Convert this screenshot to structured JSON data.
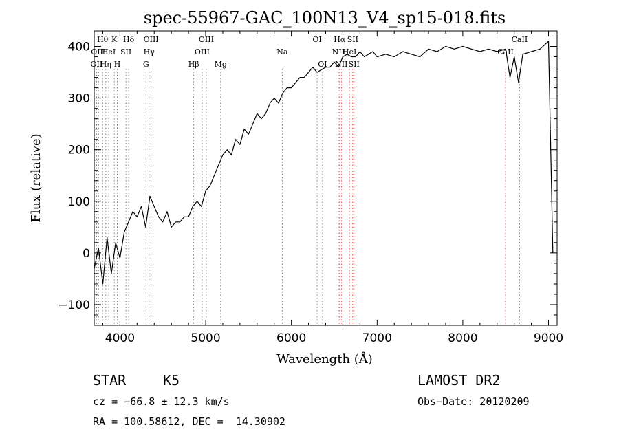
{
  "chart_data": {
    "type": "line",
    "title": "spec-55967-GAC_100N13_V4_sp15-018.fits",
    "xlabel": "Wavelength (Å)",
    "ylabel": "Flux (relative)",
    "xlim": [
      3700,
      9100
    ],
    "ylim": [
      -140,
      430
    ],
    "xticks": [
      4000,
      5000,
      6000,
      7000,
      8000,
      9000
    ],
    "yticks": [
      -100,
      0,
      100,
      200,
      300,
      400
    ],
    "xtick_labels": [
      "4000",
      "5000",
      "6000",
      "7000",
      "8000",
      "9000"
    ],
    "ytick_labels": [
      "−100",
      "0",
      "100",
      "200",
      "300",
      "400"
    ],
    "grid": false,
    "series": [
      {
        "x": [
          3700,
          3750,
          3800,
          3850,
          3900,
          3950,
          4000,
          4050,
          4100,
          4150,
          4200,
          4250,
          4300,
          4350,
          4400,
          4450,
          4500,
          4550,
          4600,
          4650,
          4700,
          4750,
          4800,
          4850,
          4900,
          4950,
          5000,
          5050,
          5100,
          5150,
          5200,
          5250,
          5300,
          5350,
          5400,
          5450,
          5500,
          5550,
          5600,
          5650,
          5700,
          5750,
          5800,
          5850,
          5900,
          5950,
          6000,
          6050,
          6100,
          6150,
          6200,
          6250,
          6300,
          6350,
          6400,
          6450,
          6500,
          6550,
          6600,
          6650,
          6700,
          6750,
          6800,
          6850,
          6900,
          6950,
          7000,
          7100,
          7200,
          7300,
          7400,
          7500,
          7600,
          7700,
          7800,
          7900,
          8000,
          8100,
          8200,
          8300,
          8400,
          8500,
          8550,
          8600,
          8650,
          8700,
          8800,
          8900,
          9000,
          9050
        ],
        "y": [
          -30,
          10,
          -60,
          30,
          -40,
          20,
          -10,
          40,
          60,
          80,
          70,
          90,
          50,
          110,
          90,
          70,
          60,
          80,
          50,
          60,
          60,
          70,
          70,
          90,
          100,
          90,
          120,
          130,
          150,
          170,
          190,
          200,
          190,
          220,
          210,
          240,
          230,
          250,
          270,
          260,
          270,
          290,
          300,
          290,
          310,
          320,
          320,
          330,
          340,
          340,
          350,
          360,
          350,
          355,
          360,
          360,
          370,
          360,
          380,
          385,
          380,
          380,
          390,
          380,
          385,
          390,
          380,
          385,
          380,
          390,
          385,
          380,
          395,
          390,
          400,
          395,
          400,
          395,
          390,
          395,
          390,
          395,
          340,
          380,
          330,
          385,
          390,
          395,
          410,
          0
        ]
      }
    ],
    "line_markers": [
      {
        "x": 3727,
        "label": "OII",
        "row": 2
      },
      {
        "x": 3750,
        "label": "OIII",
        "row": 1
      },
      {
        "x": 3798,
        "label": "Hθ",
        "row": 0
      },
      {
        "x": 3835,
        "label": "Hη",
        "row": 2
      },
      {
        "x": 3869,
        "label": "HeI",
        "row": 1
      },
      {
        "x": 3934,
        "label": "K",
        "row": 0
      },
      {
        "x": 3969,
        "label": "H",
        "row": 2
      },
      {
        "x": 4070,
        "label": "SII",
        "row": 1
      },
      {
        "x": 4102,
        "label": "Hδ",
        "row": 0
      },
      {
        "x": 4304,
        "label": "G",
        "row": 2
      },
      {
        "x": 4340,
        "label": "Hγ",
        "row": 1
      },
      {
        "x": 4363,
        "label": "OIII",
        "row": 0
      },
      {
        "x": 4861,
        "label": "Hβ",
        "row": 2
      },
      {
        "x": 4959,
        "label": "OIII",
        "row": 1
      },
      {
        "x": 5007,
        "label": "OIII",
        "row": 0
      },
      {
        "x": 5175,
        "label": "Mg",
        "row": 2
      },
      {
        "x": 5893,
        "label": "Na",
        "row": 1
      },
      {
        "x": 6300,
        "label": "OI",
        "row": 0
      },
      {
        "x": 6363,
        "label": "OI",
        "row": 2
      },
      {
        "x": 6548,
        "label": "NII",
        "row": 1
      },
      {
        "x": 6563,
        "label": "Hα",
        "row": 0
      },
      {
        "x": 6583,
        "label": "NII",
        "row": 2
      },
      {
        "x": 6678,
        "label": "HeI",
        "row": 1
      },
      {
        "x": 6716,
        "label": "SII",
        "row": 0
      },
      {
        "x": 6731,
        "label": "SII",
        "row": 2
      },
      {
        "x": 8498,
        "label": "CaII",
        "row": 1
      },
      {
        "x": 8662,
        "label": "CaII",
        "row": 0
      }
    ]
  },
  "info": {
    "class": "STAR",
    "subclass": "K5",
    "survey": "LAMOST DR2",
    "cz": "cz = −66.8 ± 12.3 km/s",
    "obs_date": "Obs−Date: 20120209",
    "radec": "RA = 100.58612, DEC =  14.30902"
  }
}
